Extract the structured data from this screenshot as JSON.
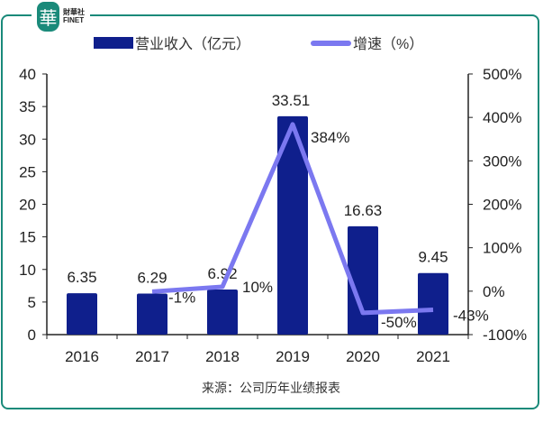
{
  "logo": {
    "cn": "財華社",
    "en": "FINET",
    "mark": "華"
  },
  "chart_data": {
    "type": "bar",
    "categories": [
      "2016",
      "2017",
      "2018",
      "2019",
      "2020",
      "2021"
    ],
    "series": [
      {
        "name": "营业收入（亿元）",
        "type": "bar",
        "axis": "left",
        "color": "#0f1f8c",
        "values": [
          6.35,
          6.29,
          6.92,
          33.51,
          16.63,
          9.45
        ],
        "labels": [
          "6.35",
          "6.29",
          "6.92",
          "33.51",
          "16.63",
          "9.45"
        ]
      },
      {
        "name": "增速（%）",
        "type": "line",
        "axis": "right",
        "color": "#7b78f0",
        "values": [
          null,
          -1,
          10,
          384,
          -50,
          -43
        ],
        "labels": [
          "",
          "-1%",
          "10%",
          "384%",
          "-50%",
          "-43%"
        ]
      }
    ],
    "ylim": [
      0,
      40
    ],
    "yticks": [
      "0",
      "5",
      "10",
      "15",
      "20",
      "25",
      "30",
      "35",
      "40"
    ],
    "y2lim": [
      -100,
      500
    ],
    "y2ticks": [
      "-100%",
      "0%",
      "100%",
      "200%",
      "300%",
      "400%",
      "500%"
    ],
    "legend": "top",
    "source": "来源：公司历年业绩报表"
  }
}
